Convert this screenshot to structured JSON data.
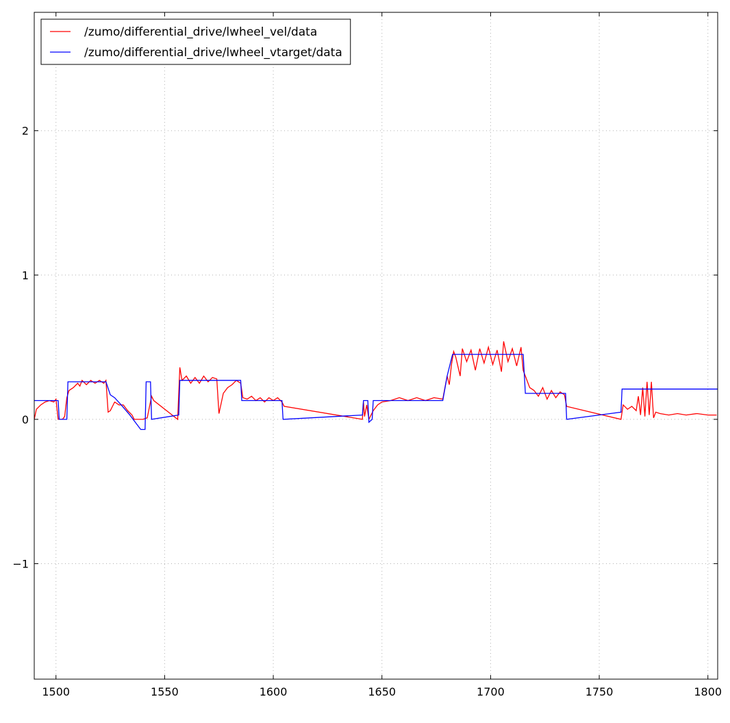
{
  "chart_data": {
    "type": "line",
    "xlim": [
      1490,
      1804.5
    ],
    "ylim": [
      -1.8,
      2.82
    ],
    "xticks": [
      1500,
      1550,
      1600,
      1650,
      1700,
      1750,
      1800
    ],
    "yticks": [
      {
        "value": -1,
        "label": "−1"
      },
      0,
      1,
      2
    ],
    "grid": true,
    "legend": "upper left",
    "series": [
      {
        "name": "/zumo/differential_drive/lwheel_vel/data",
        "color": "#ff0000",
        "x": [
          1490,
          1491,
          1493,
          1495,
          1497,
          1499,
          1500,
          1501,
          1503,
          1504,
          1505,
          1506,
          1508,
          1510,
          1511,
          1512,
          1514,
          1516,
          1518,
          1520,
          1522,
          1523,
          1524,
          1525,
          1527,
          1529,
          1531,
          1533,
          1535,
          1536,
          1540,
          1542,
          1544,
          1545,
          1556,
          1557,
          1558,
          1560,
          1562,
          1564,
          1566,
          1568,
          1570,
          1572,
          1574,
          1575,
          1577,
          1579,
          1581,
          1583,
          1585,
          1586,
          1588,
          1590,
          1592,
          1594,
          1596,
          1598,
          1600,
          1602,
          1604,
          1605,
          1641,
          1641.5,
          1642,
          1643,
          1644,
          1645,
          1646,
          1648,
          1650,
          1654,
          1658,
          1662,
          1666,
          1670,
          1674,
          1678,
          1680,
          1681,
          1682,
          1683,
          1684,
          1686,
          1687,
          1689,
          1691,
          1693,
          1695,
          1697,
          1699,
          1701,
          1703,
          1705,
          1706,
          1708,
          1710,
          1712,
          1714,
          1715,
          1716,
          1718,
          1720,
          1722,
          1724,
          1726,
          1728,
          1730,
          1732,
          1734,
          1735,
          1760,
          1761,
          1763,
          1765,
          1767,
          1768,
          1769,
          1770,
          1771,
          1772,
          1773,
          1774,
          1775,
          1776,
          1778,
          1782,
          1786,
          1790,
          1795,
          1800,
          1804
        ],
        "values": [
          0,
          0.07,
          0.1,
          0.12,
          0.13,
          0.12,
          0.14,
          0,
          0,
          0.02,
          0.15,
          0.2,
          0.22,
          0.25,
          0.23,
          0.27,
          0.24,
          0.27,
          0.25,
          0.27,
          0.25,
          0.27,
          0.05,
          0.06,
          0.12,
          0.1,
          0.1,
          0.06,
          0.03,
          0,
          0,
          0.01,
          0.16,
          0.13,
          0,
          0.36,
          0.27,
          0.3,
          0.25,
          0.29,
          0.25,
          0.3,
          0.26,
          0.29,
          0.28,
          0.04,
          0.18,
          0.22,
          0.24,
          0.27,
          0.25,
          0.15,
          0.14,
          0.16,
          0.13,
          0.15,
          0.12,
          0.15,
          0.13,
          0.15,
          0.12,
          0.09,
          0,
          0.12,
          0.02,
          0.1,
          0,
          0.03,
          0.06,
          0.1,
          0.12,
          0.13,
          0.15,
          0.13,
          0.15,
          0.13,
          0.15,
          0.14,
          0.3,
          0.24,
          0.38,
          0.47,
          0.43,
          0.3,
          0.49,
          0.4,
          0.48,
          0.34,
          0.49,
          0.39,
          0.5,
          0.38,
          0.48,
          0.33,
          0.54,
          0.4,
          0.49,
          0.37,
          0.5,
          0.34,
          0.3,
          0.22,
          0.2,
          0.16,
          0.22,
          0.14,
          0.2,
          0.15,
          0.19,
          0.17,
          0.09,
          0,
          0.1,
          0.07,
          0.09,
          0.06,
          0.16,
          0.03,
          0.22,
          0.02,
          0.26,
          0.03,
          0.26,
          0.01,
          0.05,
          0.04,
          0.03,
          0.04,
          0.03,
          0.04,
          0.03,
          0.03
        ]
      },
      {
        "name": "/zumo/differential_drive/lwheel_vtarget/data",
        "color": "#0000ff",
        "x": [
          1490,
          1501,
          1501.5,
          1505,
          1505.5,
          1523,
          1525,
          1527,
          1530,
          1534,
          1537,
          1539,
          1541,
          1541.5,
          1543.5,
          1544,
          1556.5,
          1557,
          1585,
          1585.5,
          1604,
          1604.5,
          1641,
          1641.5,
          1643.5,
          1644,
          1645.5,
          1646,
          1678,
          1680,
          1682,
          1682.5,
          1715,
          1716,
          1734.5,
          1735,
          1760,
          1760.5,
          1804.5
        ],
        "values": [
          0.13,
          0.13,
          0,
          0,
          0.26,
          0.26,
          0.17,
          0.15,
          0.1,
          0.03,
          -0.03,
          -0.07,
          -0.07,
          0.26,
          0.26,
          0,
          0.03,
          0.27,
          0.27,
          0.13,
          0.13,
          0,
          0.03,
          0.13,
          0.13,
          -0.02,
          0,
          0.13,
          0.13,
          0.3,
          0.42,
          0.45,
          0.45,
          0.18,
          0.18,
          0,
          0.05,
          0.21,
          0.21
        ]
      }
    ]
  }
}
